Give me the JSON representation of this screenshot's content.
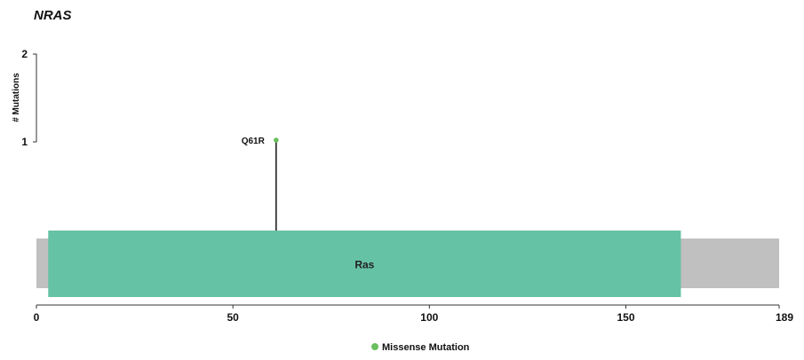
{
  "chart_data": {
    "type": "lollipop",
    "title": "NRAS",
    "ylabel": "# Mutations",
    "xlim": [
      0,
      189
    ],
    "ylim": [
      0,
      2
    ],
    "x_ticks": [
      0,
      50,
      100,
      150,
      189
    ],
    "y_ticks": [
      1,
      2
    ],
    "protein_length": 189,
    "domains": [
      {
        "name": "Ras",
        "start": 3,
        "end": 164,
        "color": "#66c2a5"
      }
    ],
    "backbone_color": "#c0c0c0",
    "mutations": [
      {
        "label": "Q61R",
        "position": 61,
        "count": 1,
        "type": "Missense Mutation",
        "color": "#6abf5e"
      }
    ],
    "legend": [
      {
        "label": "Missense Mutation",
        "color": "#6abf5e"
      }
    ],
    "legend_position": "bottom-center"
  }
}
